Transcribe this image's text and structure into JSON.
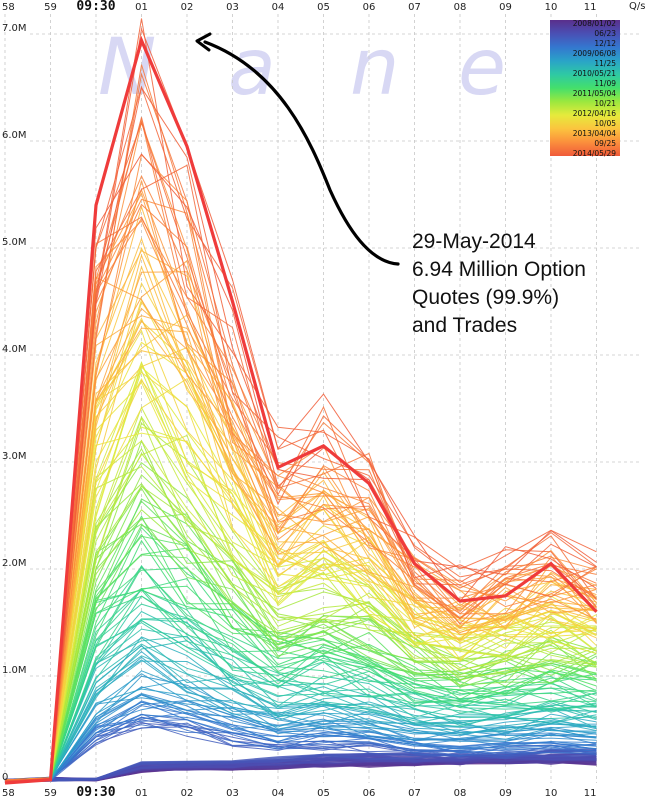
{
  "watermark": [
    "N",
    "a",
    "n",
    "e"
  ],
  "annotation": {
    "lines": [
      "29-May-2014",
      "6.94 Million Option",
      "Quotes (99.9%)",
      "and Trades"
    ]
  },
  "legend": {
    "labels": [
      "2008/01/02",
      "06/23",
      "12/12",
      "2009/06/08",
      "11/25",
      "2010/05/21",
      "11/09",
      "2011/05/04",
      "10/21",
      "2012/04/16",
      "10/05",
      "2013/04/04",
      "09/25",
      "2014/05/29"
    ],
    "colors": [
      "#5a2f8c",
      "#4a50b4",
      "#3477cf",
      "#2aa3c8",
      "#2ec9a4",
      "#44df6c",
      "#9be83e",
      "#e6ea3c",
      "#fbc43e",
      "#fb8e3c",
      "#f05a3a"
    ]
  },
  "chart_data": {
    "type": "line",
    "y_unit_label": "Q/s",
    "x_ticks": [
      "58",
      "59",
      "09:30",
      "01",
      "02",
      "03",
      "04",
      "05",
      "06",
      "07",
      "08",
      "09",
      "10",
      "11"
    ],
    "x_ticks_bottom": [
      "58",
      "59",
      "09:30",
      "01",
      "02",
      "03",
      "04",
      "05",
      "06",
      "07",
      "08",
      "09",
      "10",
      "11"
    ],
    "y_ticks": [
      {
        "value": 0,
        "label": "0"
      },
      {
        "value": 1000000,
        "label": "1.0M"
      },
      {
        "value": 2000000,
        "label": "2.0M"
      },
      {
        "value": 3000000,
        "label": "3.0M"
      },
      {
        "value": 4000000,
        "label": "4.0M"
      },
      {
        "value": 5000000,
        "label": "5.0M"
      },
      {
        "value": 6000000,
        "label": "6.0M"
      },
      {
        "value": 7000000,
        "label": "7.0M"
      }
    ],
    "ylim": [
      0,
      7100000
    ],
    "grid": true,
    "legend_position": "top-right",
    "series": [
      {
        "name": "2014/05/29",
        "values": [
          0,
          30000,
          5400000,
          6940000,
          5950000,
          4500000,
          2950000,
          3150000,
          2800000,
          2050000,
          1700000,
          1750000,
          2050000,
          1600000
        ]
      }
    ]
  }
}
